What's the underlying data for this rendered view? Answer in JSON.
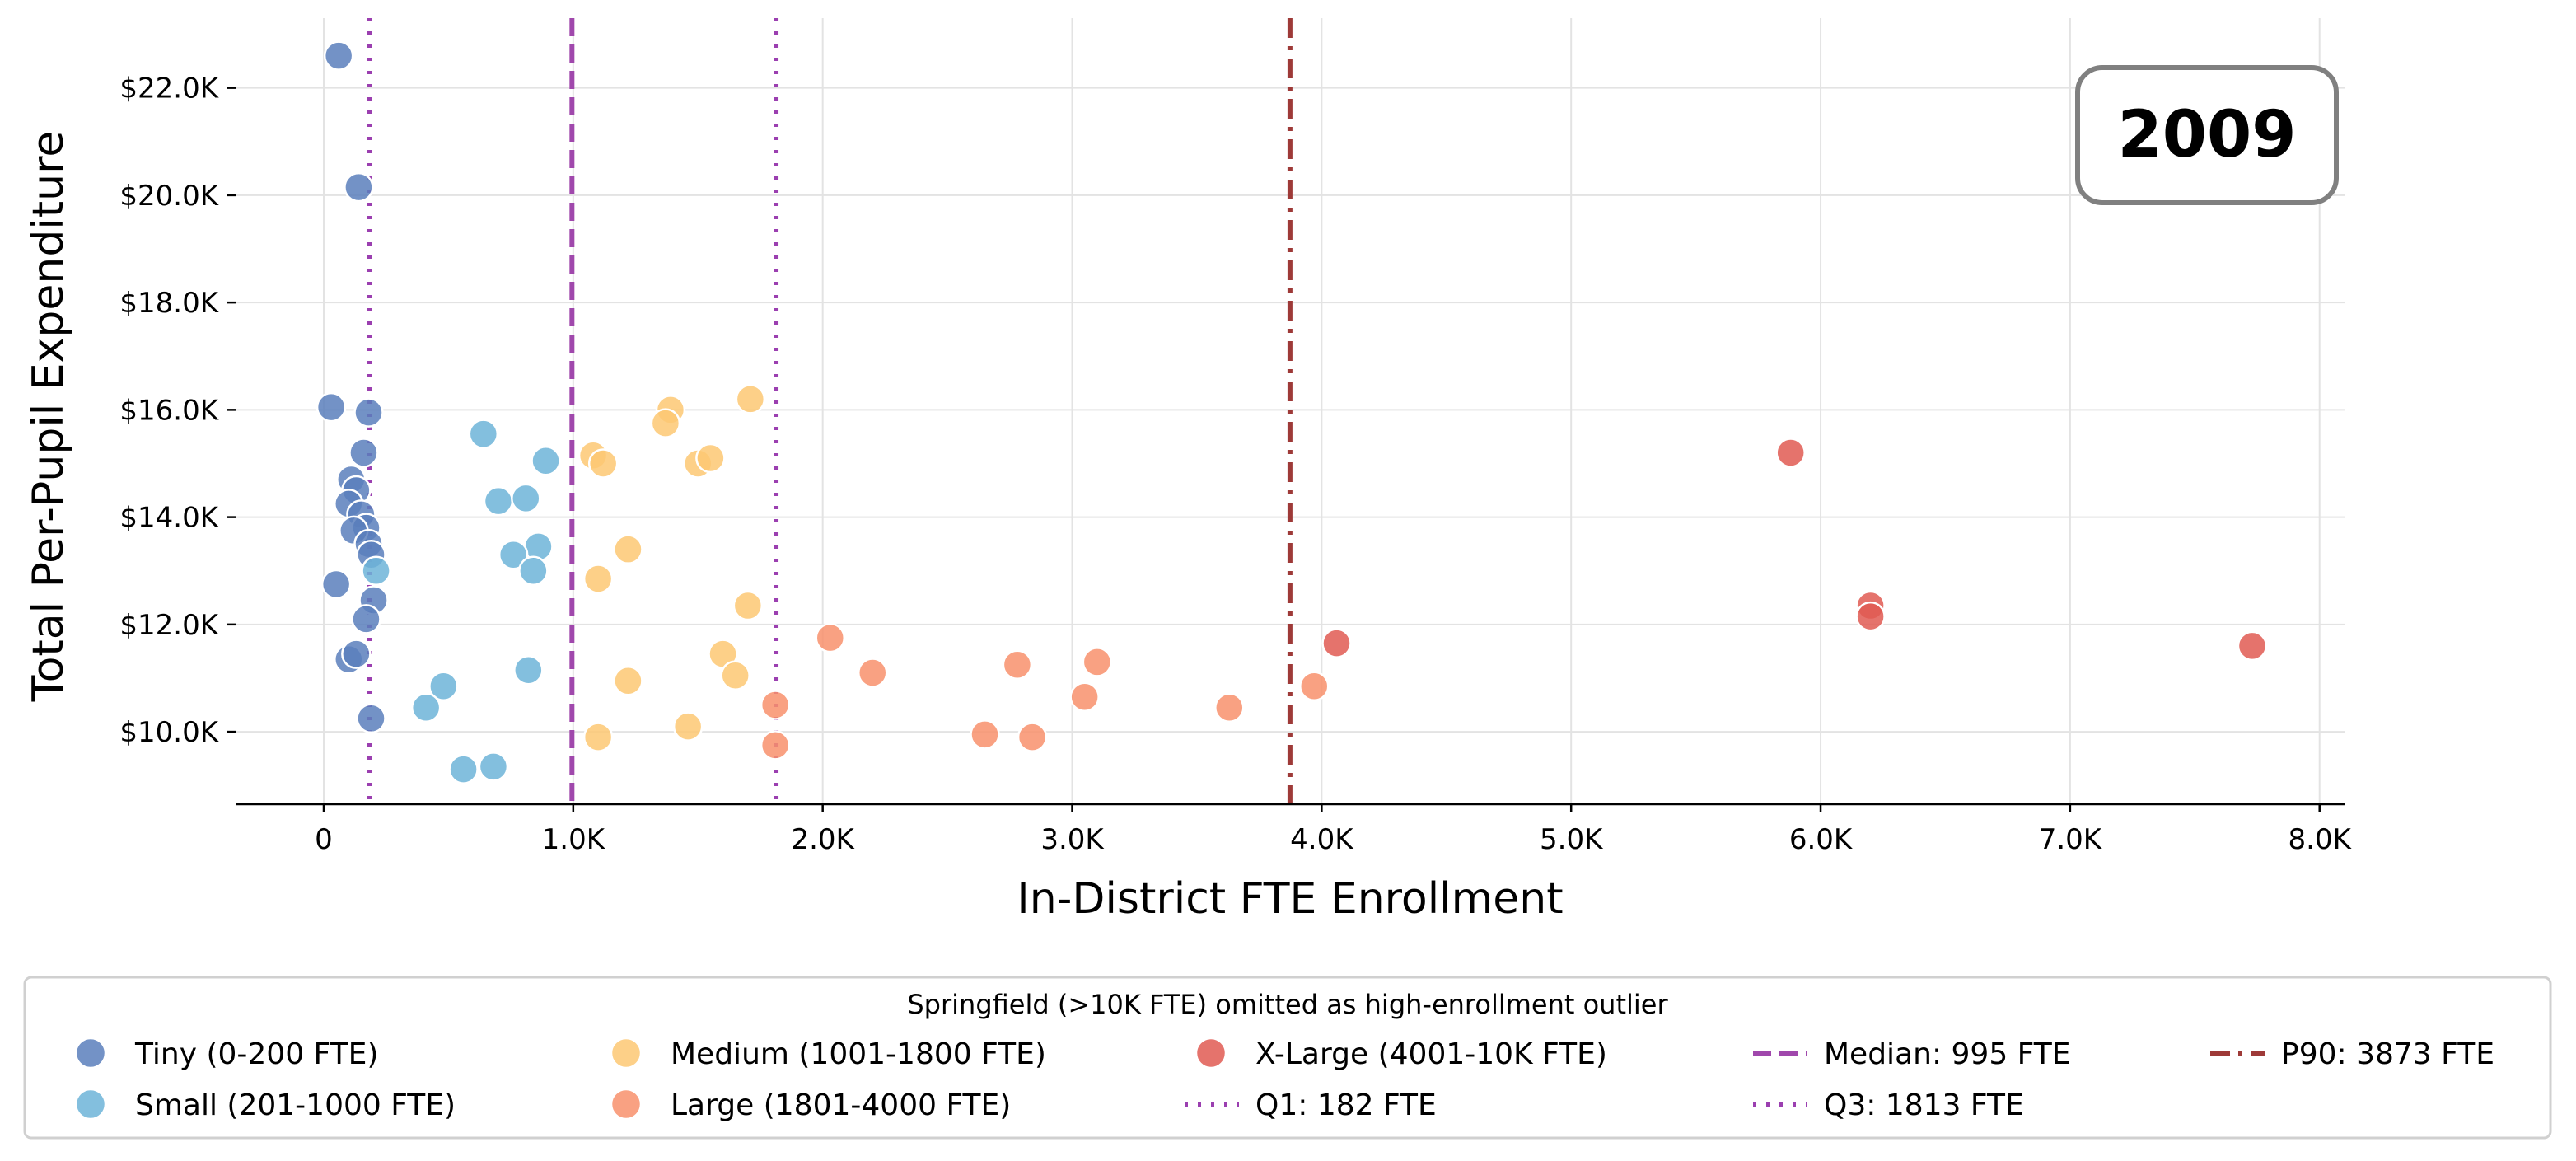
{
  "chart_data": {
    "type": "scatter",
    "xlabel": "In-District FTE Enrollment",
    "ylabel": "Total Per-Pupil Expenditure",
    "xlim": [
      -350,
      8100
    ],
    "ylim": [
      8650,
      23300
    ],
    "x_ticks": [
      0,
      1000,
      2000,
      3000,
      4000,
      5000,
      6000,
      7000,
      8000
    ],
    "x_tick_labels": [
      "0",
      "1.0K",
      "2.0K",
      "3.0K",
      "4.0K",
      "5.0K",
      "6.0K",
      "7.0K",
      "8.0K"
    ],
    "y_ticks": [
      10000,
      12000,
      14000,
      16000,
      18000,
      20000,
      22000
    ],
    "y_tick_labels": [
      "$10.0K",
      "$12.0K",
      "$14.0K",
      "$16.0K",
      "$18.0K",
      "$20.0K",
      "$22.0K"
    ],
    "grid": true,
    "annotation": "2009",
    "legend_title": "Springfield (>10K FTE) omitted as high-enrollment outlier",
    "legend_position": "bottom",
    "series": [
      {
        "name": "Tiny (0-200 FTE)",
        "color": "#5b7fbc",
        "points": [
          [
            60,
            22600
          ],
          [
            140,
            20150
          ],
          [
            30,
            16050
          ],
          [
            180,
            15950
          ],
          [
            160,
            15200
          ],
          [
            110,
            14700
          ],
          [
            130,
            14500
          ],
          [
            100,
            14250
          ],
          [
            150,
            14050
          ],
          [
            170,
            13800
          ],
          [
            120,
            13750
          ],
          [
            180,
            13500
          ],
          [
            190,
            13300
          ],
          [
            50,
            12750
          ],
          [
            200,
            12450
          ],
          [
            170,
            12100
          ],
          [
            100,
            11350
          ],
          [
            130,
            11450
          ],
          [
            190,
            10250
          ]
        ]
      },
      {
        "name": "Small (201-1000 FTE)",
        "color": "#6db4d8",
        "points": [
          [
            210,
            13000
          ],
          [
            640,
            15550
          ],
          [
            890,
            15050
          ],
          [
            700,
            14300
          ],
          [
            810,
            14350
          ],
          [
            860,
            13450
          ],
          [
            760,
            13300
          ],
          [
            840,
            13000
          ],
          [
            820,
            11150
          ],
          [
            480,
            10850
          ],
          [
            410,
            10450
          ],
          [
            560,
            9300
          ],
          [
            680,
            9350
          ]
        ]
      },
      {
        "name": "Medium (1001-1800 FTE)",
        "color": "#fdc873",
        "points": [
          [
            1710,
            16200
          ],
          [
            1390,
            16000
          ],
          [
            1370,
            15750
          ],
          [
            1080,
            15150
          ],
          [
            1120,
            15000
          ],
          [
            1500,
            15000
          ],
          [
            1550,
            15100
          ],
          [
            1220,
            13400
          ],
          [
            1100,
            12850
          ],
          [
            1700,
            12350
          ],
          [
            1600,
            11450
          ],
          [
            1650,
            11050
          ],
          [
            1220,
            10950
          ],
          [
            1460,
            10100
          ],
          [
            1100,
            9900
          ]
        ]
      },
      {
        "name": "Large (1801-4000 FTE)",
        "color": "#f8906c",
        "points": [
          [
            2030,
            11750
          ],
          [
            2200,
            11100
          ],
          [
            2780,
            11250
          ],
          [
            3100,
            11300
          ],
          [
            3050,
            10650
          ],
          [
            3970,
            10850
          ],
          [
            3630,
            10450
          ],
          [
            2650,
            9950
          ],
          [
            2840,
            9900
          ],
          [
            1810,
            10500
          ],
          [
            1810,
            9750
          ]
        ]
      },
      {
        "name": "X-Large (4001-10K FTE)",
        "color": "#e05a52",
        "points": [
          [
            5880,
            15200
          ],
          [
            6200,
            12350
          ],
          [
            6200,
            12150
          ],
          [
            4060,
            11650
          ],
          [
            7730,
            11600
          ]
        ]
      }
    ],
    "reference_lines": [
      {
        "name": "Q1: 182 FTE",
        "x": 182,
        "color": "#9b3fb0",
        "style": "dotted"
      },
      {
        "name": "Median: 995 FTE",
        "x": 995,
        "color": "#a048ac",
        "style": "dashed"
      },
      {
        "name": "Q3: 1813 FTE",
        "x": 1813,
        "color": "#9b3fb0",
        "style": "dotted"
      },
      {
        "name": "P90: 3873 FTE",
        "x": 3873,
        "color": "#9e3a38",
        "style": "dashdot"
      }
    ]
  }
}
